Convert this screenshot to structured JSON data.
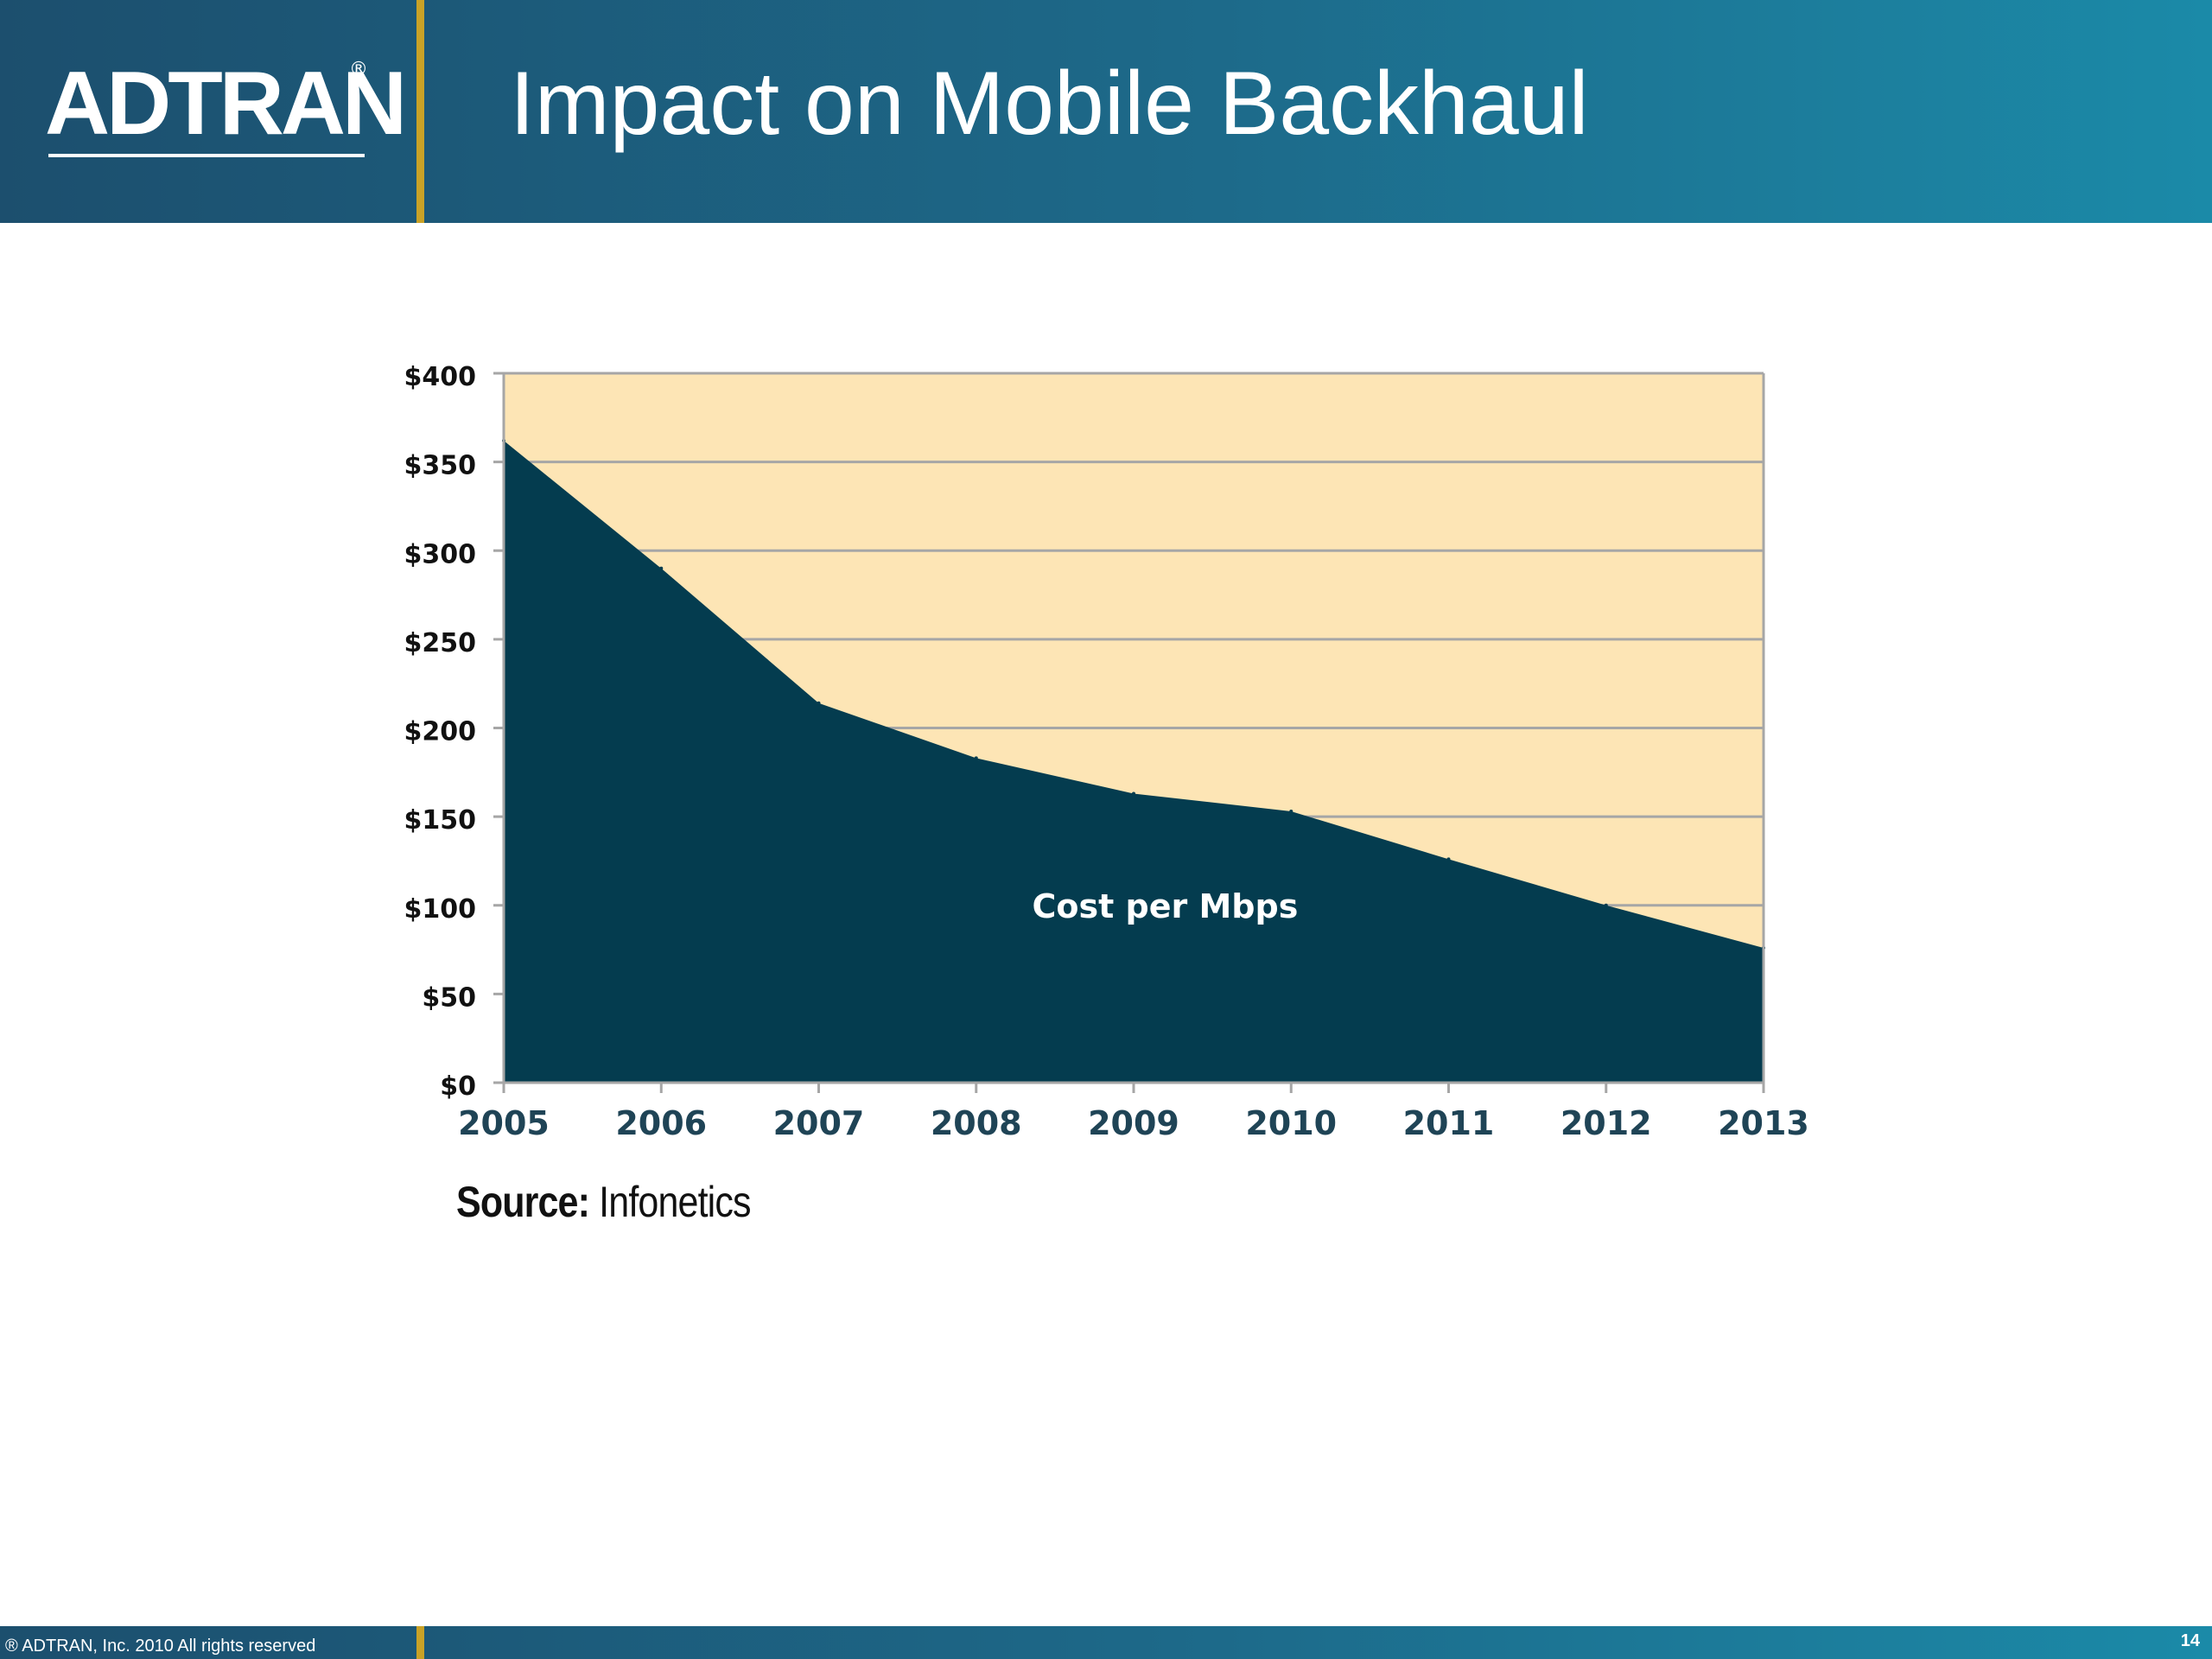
{
  "header": {
    "logo": "ADTRAN",
    "logo_mark": "®",
    "title": "Impact on Mobile Backhaul"
  },
  "colors": {
    "header_blue": "#1c4f6e",
    "accent_gold": "#c9a227",
    "plot_background": "#fde5b5",
    "area_fill": "#043c4f",
    "gridline": "#a6a6a6",
    "x_tick_color": "#1f4456"
  },
  "chart_data": {
    "type": "area",
    "title": "",
    "xlabel": "",
    "ylabel": "",
    "x": [
      "2005",
      "2006",
      "2007",
      "2008",
      "2009",
      "2010",
      "2011",
      "2012",
      "2013"
    ],
    "series": [
      {
        "name": "Cost per Mbps",
        "values": [
          362,
          290,
          214,
          183,
          163,
          153,
          126,
          100,
          76
        ]
      }
    ],
    "ylim": [
      0,
      400
    ],
    "y_ticks": [
      0,
      50,
      100,
      150,
      200,
      250,
      300,
      350,
      400
    ],
    "y_tick_labels": [
      "$0",
      "$50",
      "$100",
      "$150",
      "$200",
      "$250",
      "$300",
      "$350",
      "$400"
    ],
    "grid": true,
    "legend": "none",
    "annotation": "Cost per Mbps"
  },
  "source": {
    "label": "Source:",
    "value": " Infonetics"
  },
  "footer": {
    "copyright": "® ADTRAN, Inc. 2010 All rights reserved",
    "page_number": "14"
  }
}
